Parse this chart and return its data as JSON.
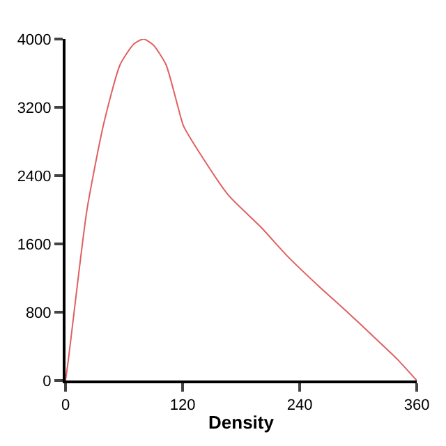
{
  "chart_data": {
    "type": "line",
    "xlabel": "Density",
    "x": [
      0,
      3,
      9,
      22,
      39,
      56,
      70,
      80,
      90,
      103,
      114,
      121,
      140,
      167,
      200,
      228,
      260,
      290,
      317,
      340,
      360
    ],
    "series": [
      {
        "color": "#e06060",
        "values": [
          0,
          250,
          820,
          2000,
          3000,
          3700,
          3940,
          4000,
          3930,
          3700,
          3260,
          2980,
          2620,
          2170,
          1800,
          1450,
          1100,
          790,
          500,
          250,
          0
        ]
      }
    ],
    "xlim": [
      0,
      360
    ],
    "xticks": [
      0,
      120,
      240,
      360
    ],
    "ylim": [
      0,
      4000
    ],
    "yticks": [
      0,
      800,
      1600,
      2400,
      3200,
      4000
    ],
    "legend": false,
    "marker": "none",
    "line_style": "solid"
  }
}
